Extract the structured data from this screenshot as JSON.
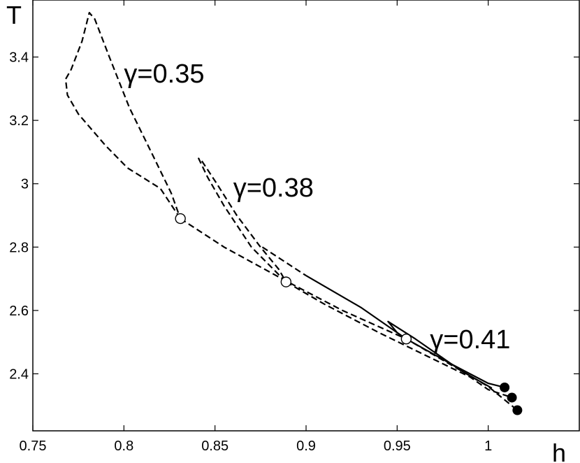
{
  "chart_data": {
    "type": "line",
    "title": "",
    "xlabel": "h",
    "ylabel": "T",
    "xlim": [
      0.75,
      1.05
    ],
    "ylim": [
      2.22,
      3.58
    ],
    "xticks": [
      0.75,
      0.8,
      0.85,
      0.9,
      0.95,
      1
    ],
    "xtick_labels": [
      "0.75",
      "0.8",
      "0.85",
      "0.9",
      "0.95",
      "1"
    ],
    "yticks": [
      2.4,
      2.6,
      2.8,
      3.0,
      3.2,
      3.4
    ],
    "ytick_labels": [
      "2.4",
      "2.6",
      "2.8",
      "3",
      "3.2",
      "3.4"
    ],
    "grid": false,
    "annotations": [
      {
        "text": "γ=0.35",
        "x": 0.8,
        "y": 3.32
      },
      {
        "text": "γ=0.38",
        "x": 0.86,
        "y": 2.96
      },
      {
        "text": "γ=0.41",
        "x": 0.968,
        "y": 2.48
      }
    ],
    "series": [
      {
        "style": "dashed",
        "points": [
          [
            0.831,
            2.89
          ],
          [
            0.855,
            2.8
          ],
          [
            0.89,
            2.69
          ],
          [
            0.92,
            2.6
          ],
          [
            0.955,
            2.51
          ],
          [
            0.985,
            2.41
          ],
          [
            1.0,
            2.36
          ],
          [
            1.016,
            2.285
          ]
        ]
      },
      {
        "style": "dashed",
        "points": [
          [
            0.831,
            2.89
          ],
          [
            0.82,
            2.985
          ],
          [
            0.802,
            3.05
          ],
          [
            0.79,
            3.12
          ],
          [
            0.775,
            3.22
          ],
          [
            0.769,
            3.28
          ],
          [
            0.768,
            3.33
          ],
          [
            0.771,
            3.36
          ],
          [
            0.777,
            3.45
          ],
          [
            0.781,
            3.54
          ],
          [
            0.784,
            3.52
          ],
          [
            0.792,
            3.4
          ],
          [
            0.803,
            3.24
          ],
          [
            0.815,
            3.1
          ],
          [
            0.826,
            2.97
          ],
          [
            0.831,
            2.89
          ]
        ]
      },
      {
        "style": "dashed",
        "points": [
          [
            0.889,
            2.69
          ],
          [
            0.87,
            2.8
          ],
          [
            0.855,
            2.93
          ],
          [
            0.846,
            3.02
          ],
          [
            0.841,
            3.08
          ],
          [
            0.843,
            3.07
          ],
          [
            0.851,
            3.0
          ],
          [
            0.862,
            2.9
          ],
          [
            0.875,
            2.8
          ],
          [
            0.885,
            2.73
          ],
          [
            0.889,
            2.69
          ]
        ]
      },
      {
        "style": "dashed",
        "points": [
          [
            0.889,
            2.69
          ],
          [
            0.91,
            2.62
          ],
          [
            0.94,
            2.53
          ],
          [
            0.965,
            2.46
          ],
          [
            0.99,
            2.39
          ],
          [
            1.0,
            2.35
          ],
          [
            1.013,
            2.325
          ]
        ]
      },
      {
        "style": "dashed",
        "points": [
          [
            0.876,
            2.8
          ],
          [
            0.9,
            2.71
          ]
        ]
      },
      {
        "style": "solid",
        "points": [
          [
            0.9,
            2.71
          ],
          [
            0.93,
            2.61
          ],
          [
            0.955,
            2.51
          ],
          [
            0.98,
            2.43
          ],
          [
            1.0,
            2.37
          ],
          [
            1.009,
            2.357
          ]
        ]
      },
      {
        "style": "solid",
        "points": [
          [
            0.955,
            2.51
          ],
          [
            0.95,
            2.53
          ],
          [
            0.945,
            2.565
          ],
          [
            0.96,
            2.51
          ],
          [
            0.985,
            2.41
          ],
          [
            1.002,
            2.355
          ]
        ]
      }
    ],
    "open_markers": [
      [
        0.831,
        2.89
      ],
      [
        0.889,
        2.69
      ],
      [
        0.955,
        2.51
      ]
    ],
    "filled_markers": [
      [
        1.009,
        2.357
      ],
      [
        1.013,
        2.325
      ],
      [
        1.016,
        2.285
      ]
    ]
  }
}
